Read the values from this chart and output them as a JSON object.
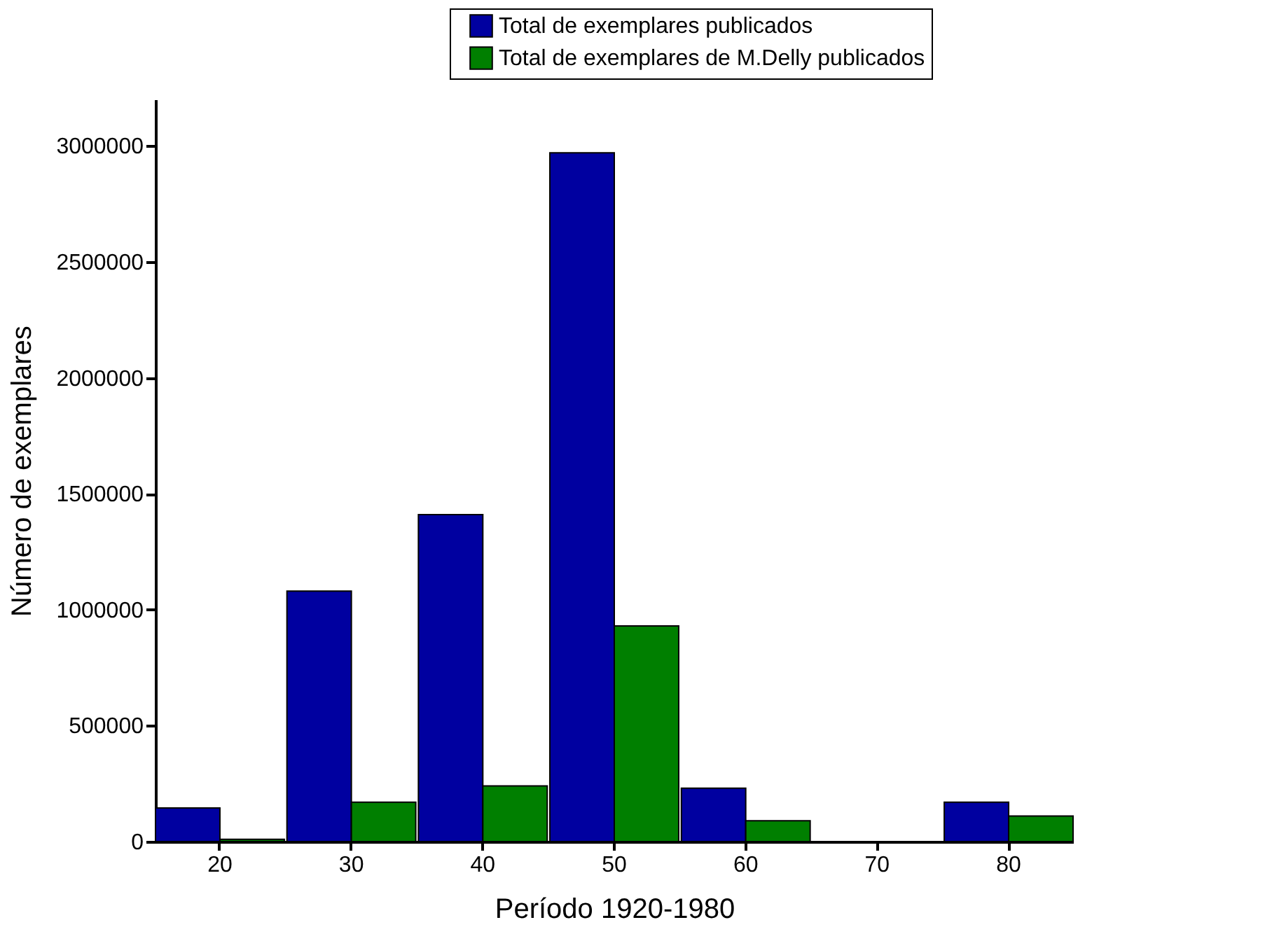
{
  "chart_data": {
    "type": "bar",
    "xlabel": "Período 1920-1980",
    "ylabel": "Número de exemplares",
    "categories": [
      "20",
      "30",
      "40",
      "50",
      "60",
      "70",
      "80"
    ],
    "series": [
      {
        "name": "Total de exemplares publicados",
        "color": "#0000a0",
        "values": [
          145000,
          1080000,
          1410000,
          2970000,
          230000,
          null,
          170000
        ]
      },
      {
        "name": "Total de exemplares de M.Delly publicados",
        "color": "#007f00",
        "values": [
          10000,
          170000,
          240000,
          930000,
          90000,
          null,
          110000
        ]
      }
    ],
    "ylim": [
      0,
      3200000
    ],
    "yticks": [
      0,
      500000,
      1000000,
      1500000,
      2000000,
      2500000,
      3000000
    ],
    "grid": false,
    "legend": "top right"
  }
}
